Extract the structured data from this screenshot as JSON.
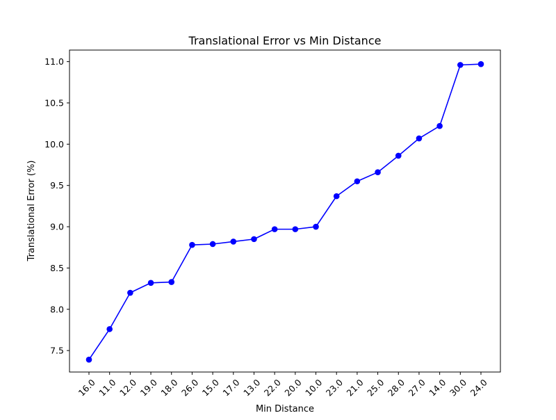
{
  "chart_data": {
    "type": "line",
    "title": "Translational Error vs Min Distance",
    "xlabel": "Min Distance",
    "ylabel": "Translational Error (%)",
    "categories": [
      "16.0",
      "11.0",
      "12.0",
      "19.0",
      "18.0",
      "26.0",
      "15.0",
      "17.0",
      "13.0",
      "22.0",
      "20.0",
      "10.0",
      "23.0",
      "21.0",
      "25.0",
      "28.0",
      "27.0",
      "14.0",
      "30.0",
      "24.0"
    ],
    "series": [
      {
        "values": [
          7.39,
          7.76,
          8.2,
          8.32,
          8.33,
          8.78,
          8.79,
          8.82,
          8.85,
          8.97,
          8.97,
          9.0,
          9.37,
          9.55,
          9.66,
          9.86,
          10.07,
          10.22,
          10.96,
          10.97
        ],
        "color": "#0000ff",
        "marker": "circle"
      }
    ],
    "ylim": [
      7.24,
      11.14
    ],
    "yticks": [
      "7.5",
      "8.0",
      "8.5",
      "9.0",
      "9.5",
      "10.0",
      "10.5",
      "11.0"
    ],
    "grid": false,
    "legend": "none"
  }
}
